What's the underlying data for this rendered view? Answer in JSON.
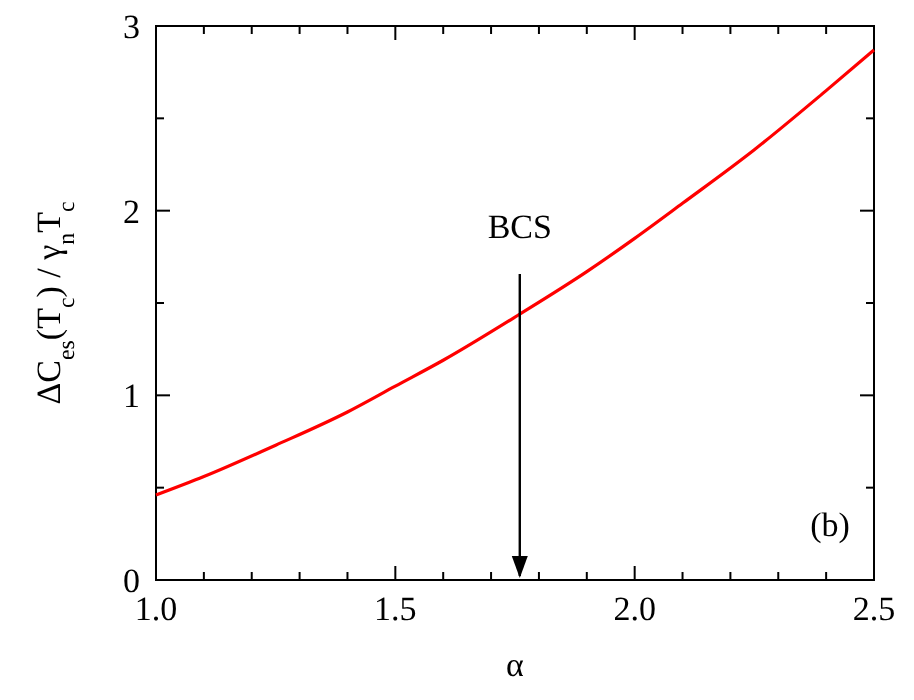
{
  "chart_data": {
    "type": "line",
    "xlabel": "α",
    "ylabel": "ΔC$_{es}$(T$_{c}$) / γ$_{n}$T$_{c}$",
    "x": [
      1.0,
      1.1,
      1.25,
      1.4,
      1.5,
      1.6,
      1.76,
      1.9,
      2.0,
      2.1,
      2.25,
      2.4,
      2.5
    ],
    "series": [
      {
        "color": "#ff0000",
        "values": [
          0.46,
          0.56,
          0.73,
          0.91,
          1.05,
          1.19,
          1.44,
          1.67,
          1.85,
          2.04,
          2.33,
          2.65,
          2.87
        ]
      }
    ],
    "xlim": [
      1.0,
      2.5
    ],
    "xticks": [
      {
        "value": 1,
        "label": "1.0"
      },
      {
        "value": 1.1,
        "label": null
      },
      {
        "value": 1.2,
        "label": null
      },
      {
        "value": 1.3,
        "label": null
      },
      {
        "value": 1.4,
        "label": null
      },
      1.5,
      {
        "value": 1.6,
        "label": null
      },
      {
        "value": 1.7,
        "label": null
      },
      {
        "value": 1.8,
        "label": null
      },
      {
        "value": 1.9,
        "label": null
      },
      {
        "value": 2,
        "label": "2.0"
      },
      {
        "value": 2.1,
        "label": null
      },
      {
        "value": 2.2,
        "label": null
      },
      {
        "value": 2.3,
        "label": null
      },
      {
        "value": 2.4,
        "label": null
      },
      2.5
    ],
    "ylim": [
      0,
      3
    ],
    "yticks": [
      0,
      {
        "value": 0.5,
        "label": null
      },
      1,
      {
        "value": 1.5,
        "label": null
      },
      2,
      {
        "value": 2.5,
        "label": null
      },
      3
    ],
    "annotations": [
      {
        "text": "BCS",
        "x": 1.76,
        "y": 1.44
      },
      "(b)"
    ],
    "marker": "none",
    "line_style": "solid"
  }
}
